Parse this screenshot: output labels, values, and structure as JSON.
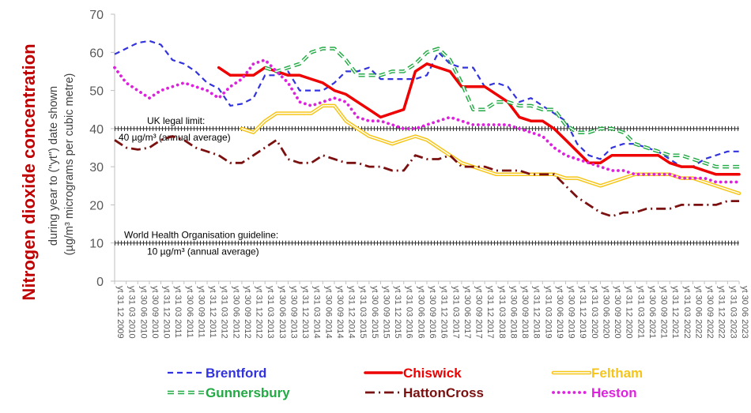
{
  "chart_data": {
    "type": "line",
    "ylabel_main": "Nitrogen dioxide concentration",
    "ylabel_sub1": "during year to (\"yt\") date shown",
    "ylabel_sub2": "(µg/m³ micrograms per cubic metre)",
    "ylim": [
      0,
      70
    ],
    "yticks": [
      0,
      10,
      20,
      30,
      40,
      50,
      60,
      70
    ],
    "grid": false,
    "legend_position": "bottom",
    "x": [
      "yt 31 12 2009",
      "yt 31 03 2010",
      "yt 30 06 2010",
      "yt 30 09 2010",
      "yt 31 12 2010",
      "yt 31 03 2011",
      "yt 30 06 2011",
      "yt 30 09 2011",
      "yt 31 12 2011",
      "yt 31 03 2012",
      "yt 30 06 2012",
      "yt 30 09 2012",
      "yt 31 12 2012",
      "yt 31 03 2013",
      "yt 30 06 2013",
      "yt 30 09 2013",
      "yt 31 12 2013",
      "yt 31 03 2014",
      "yt 30 06 2014",
      "yt 30 09 2014",
      "yt 31 12 2014",
      "yt 31 03 2015",
      "yt 30 06 2015",
      "yt 30 09 2015",
      "yt 31 12 2015",
      "yt 31 03 2016",
      "yt 30 06 2016",
      "yt 30 09 2016",
      "yt 31 12 2016",
      "yt 31 03 2017",
      "yt 30 06 2017",
      "yt 30 09 2017",
      "yt 31 12 2017",
      "yt 31 03 2018",
      "yt 30 06 2018",
      "yt 30 09 2018",
      "yt 31 12 2018",
      "yt 31 03 2019",
      "yt 30 06 2019",
      "yt 30 09 2019",
      "yt 31 12 2019",
      "yt 31 03 2020",
      "yt 30 06 2020",
      "yt 30 09 2020",
      "yt 31 12 2020",
      "yt 31 03 2021",
      "yt 30 06 2021",
      "yt 30 09 2021",
      "yt 31 12 2021",
      "yt 31 03 2022",
      "yt 30 06 2022",
      "yt 30 09 2022",
      "yt 31 12 2022",
      "yt 31 03 2023",
      "yt 30 06 2023"
    ],
    "series": [
      {
        "name": "Brentford",
        "color": "#3333dd",
        "style": "dashed",
        "values": [
          59.5,
          61,
          62.5,
          63,
          62,
          58,
          57,
          55,
          52,
          50.5,
          46,
          46.5,
          48,
          54,
          54,
          55,
          50,
          50,
          50,
          52,
          55,
          55,
          56,
          53,
          53,
          53,
          53,
          54,
          60,
          57,
          56,
          56,
          51,
          52,
          51,
          47,
          48,
          46,
          44,
          42,
          36,
          33,
          32,
          35,
          36,
          36,
          35,
          34,
          32,
          30,
          30,
          32,
          33,
          34,
          34
        ]
      },
      {
        "name": "Chiswick",
        "color": "#ee0000",
        "style": "solid",
        "values": [
          null,
          null,
          null,
          null,
          null,
          null,
          null,
          null,
          null,
          56,
          54,
          54,
          54,
          56,
          55,
          54,
          54,
          53,
          52,
          50,
          49,
          47,
          45,
          43,
          44,
          45,
          55,
          57,
          56,
          55,
          51,
          51,
          51,
          49,
          47,
          43,
          42,
          42,
          40,
          37,
          34,
          31,
          31,
          33,
          33,
          33,
          33,
          33,
          31,
          30,
          30,
          29,
          28,
          28,
          28
        ]
      },
      {
        "name": "Feltham",
        "color": "#f5c518",
        "style": "double",
        "values": [
          null,
          null,
          null,
          null,
          null,
          null,
          null,
          null,
          null,
          null,
          null,
          40,
          39,
          42,
          44,
          44,
          44,
          44,
          46,
          46,
          42,
          40,
          38,
          37,
          36,
          37,
          38,
          37,
          35,
          33,
          31,
          30,
          29,
          28,
          28,
          28,
          28,
          28,
          28,
          27,
          27,
          26,
          25,
          26,
          27,
          28,
          28,
          28,
          28,
          27,
          27,
          26,
          25,
          24,
          23
        ]
      },
      {
        "name": "Gunnersbury",
        "color": "#22aa44",
        "style": "dashed-double",
        "values": [
          null,
          null,
          null,
          null,
          null,
          null,
          null,
          null,
          null,
          null,
          null,
          null,
          null,
          56,
          55,
          56,
          57,
          60,
          61,
          61,
          58,
          54,
          54,
          54,
          55,
          55,
          57,
          60,
          61,
          58,
          52,
          45,
          45,
          47,
          47,
          46,
          46,
          45,
          45,
          41,
          39,
          39,
          40,
          40,
          39,
          36,
          35,
          34,
          33,
          33,
          32,
          31,
          30,
          30,
          30
        ]
      },
      {
        "name": "HattonCross",
        "color": "#7a1010",
        "style": "dashdot",
        "values": [
          37,
          35,
          34.5,
          35,
          37,
          38,
          37,
          35,
          34,
          33,
          31,
          31,
          33,
          35,
          37,
          32,
          31,
          31,
          33,
          32,
          31,
          31,
          30,
          30,
          29,
          29,
          33,
          32,
          32,
          33,
          30,
          30,
          30,
          29,
          29,
          29,
          28,
          28,
          28,
          25,
          22,
          20,
          18,
          17,
          18,
          18,
          19,
          19,
          19,
          20,
          20,
          20,
          20,
          21,
          21
        ]
      },
      {
        "name": "Heston",
        "color": "#dd22dd",
        "style": "dotted",
        "values": [
          56,
          52,
          50,
          48,
          50,
          51,
          52,
          51,
          50,
          48,
          51,
          53,
          57,
          58,
          55,
          52,
          47,
          46,
          47,
          48,
          47,
          43,
          42,
          42,
          41,
          40,
          40,
          41,
          42,
          43,
          42,
          41,
          41,
          41,
          41,
          40,
          39,
          38,
          35,
          33,
          32,
          31,
          30,
          29,
          29,
          28,
          28,
          28,
          28,
          27,
          27,
          27,
          26,
          26,
          26
        ]
      }
    ],
    "reference_lines": [
      {
        "value": 40,
        "label1": "UK legal limit:",
        "label2": "40 µg/m³ (annual average)"
      },
      {
        "value": 10,
        "label1": "World Health Organisation guideline:",
        "label2": "10 µg/m³ (annual average)"
      }
    ]
  }
}
